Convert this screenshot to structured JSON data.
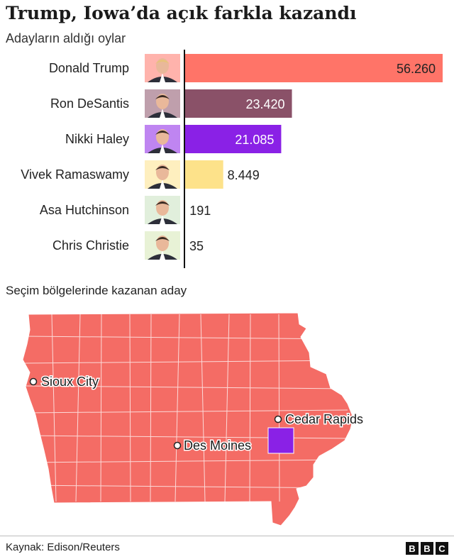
{
  "title": "Trump, Iowa’da açık farkla kazandı",
  "subtitle": "Adayların aldığı oylar",
  "chart_data": {
    "type": "bar",
    "orientation": "horizontal",
    "title": "Trump, Iowa’da açık farkla kazandı",
    "subtitle": "Adayların aldığı oylar",
    "categories": [
      "Donald Trump",
      "Ron DeSantis",
      "Nikki Haley",
      "Vivek Ramaswamy",
      "Asa Hutchinson",
      "Chris Christie"
    ],
    "values": [
      56260,
      23420,
      21085,
      8449,
      191,
      35
    ],
    "value_labels": [
      "56.260",
      "23.420",
      "21.085",
      "8.449",
      "191",
      "35"
    ],
    "colors": [
      "#ff7468",
      "#8a5168",
      "#8a21e6",
      "#fde28a",
      "#c8e2c0",
      "#d6e7b4"
    ],
    "xlim": [
      0,
      56260
    ],
    "grid": false,
    "legend": "none"
  },
  "map": {
    "title": "Seçim bölgelerinde kazanan aday",
    "cities": [
      "Sioux City",
      "Cedar Rapids",
      "Des Moines"
    ],
    "fill_colors": {
      "trump": "#f46c65",
      "haley": "#8a21e6"
    }
  },
  "footer": {
    "source": "Kaynak: Edison/Reuters",
    "logo_letters": [
      "B",
      "B",
      "C"
    ]
  },
  "icons": [
    "candidate-portrait-icon",
    "city-marker-icon"
  ]
}
